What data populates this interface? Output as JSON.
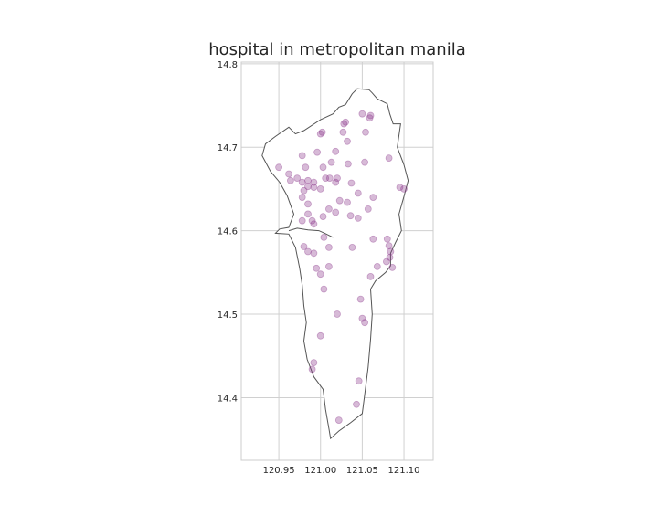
{
  "title": "hospital in metropolitan manila",
  "chart_data": {
    "type": "scatter",
    "title": "hospital in metropolitan manila",
    "xlabel": "",
    "ylabel": "",
    "xlim": [
      120.905,
      121.135
    ],
    "ylim": [
      14.325,
      14.802
    ],
    "grid": true,
    "x_ticks": [
      "120.95",
      "121.00",
      "121.05",
      "121.10"
    ],
    "y_ticks": [
      "14.4",
      "14.5",
      "14.6",
      "14.7",
      "14.8"
    ],
    "point_color": "#8b3a8b",
    "outline_color": "#555555",
    "grid_color": "#d0d0d0",
    "boundary": [
      [
        121.038,
        14.764
      ],
      [
        121.044,
        14.77
      ],
      [
        121.058,
        14.769
      ],
      [
        121.062,
        14.765
      ],
      [
        121.068,
        14.758
      ],
      [
        121.08,
        14.752
      ],
      [
        121.083,
        14.74
      ],
      [
        121.087,
        14.728
      ],
      [
        121.096,
        14.728
      ],
      [
        121.092,
        14.7
      ],
      [
        121.1,
        14.679
      ],
      [
        121.105,
        14.66
      ],
      [
        121.1,
        14.641
      ],
      [
        121.094,
        14.62
      ],
      [
        121.097,
        14.6
      ],
      [
        121.09,
        14.586
      ],
      [
        121.084,
        14.573
      ],
      [
        121.084,
        14.558
      ],
      [
        121.078,
        14.55
      ],
      [
        121.066,
        14.54
      ],
      [
        121.06,
        14.53
      ],
      [
        121.062,
        14.5
      ],
      [
        121.06,
        14.47
      ],
      [
        121.057,
        14.436
      ],
      [
        121.053,
        14.404
      ],
      [
        121.05,
        14.381
      ],
      [
        121.036,
        14.37
      ],
      [
        121.022,
        14.36
      ],
      [
        121.012,
        14.351
      ],
      [
        121.01,
        14.363
      ],
      [
        121.006,
        14.386
      ],
      [
        121.003,
        14.41
      ],
      [
        120.992,
        14.425
      ],
      [
        120.984,
        14.446
      ],
      [
        120.98,
        14.468
      ],
      [
        120.983,
        14.49
      ],
      [
        120.98,
        14.51
      ],
      [
        120.978,
        14.535
      ],
      [
        120.975,
        14.555
      ],
      [
        120.97,
        14.58
      ],
      [
        120.962,
        14.596
      ],
      [
        120.946,
        14.597
      ],
      [
        120.951,
        14.602
      ],
      [
        120.962,
        14.604
      ],
      [
        120.968,
        14.62
      ],
      [
        120.96,
        14.642
      ],
      [
        120.951,
        14.658
      ],
      [
        120.94,
        14.671
      ],
      [
        120.93,
        14.69
      ],
      [
        120.934,
        14.704
      ],
      [
        120.946,
        14.713
      ],
      [
        120.962,
        14.724
      ],
      [
        120.97,
        14.716
      ],
      [
        120.98,
        14.72
      ],
      [
        121.0,
        14.733
      ],
      [
        121.015,
        14.74
      ],
      [
        121.022,
        14.748
      ],
      [
        121.03,
        14.751
      ],
      [
        121.038,
        14.764
      ]
    ],
    "river": [
      [
        120.962,
        14.6
      ],
      [
        120.972,
        14.603
      ],
      [
        120.985,
        14.601
      ],
      [
        120.998,
        14.6
      ],
      [
        121.005,
        14.597
      ],
      [
        121.015,
        14.592
      ]
    ],
    "points": [
      {
        "x": 121.05,
        "y": 14.74
      },
      {
        "x": 121.06,
        "y": 14.738
      },
      {
        "x": 121.059,
        "y": 14.735
      },
      {
        "x": 121.03,
        "y": 14.73
      },
      {
        "x": 121.028,
        "y": 14.728
      },
      {
        "x": 121.027,
        "y": 14.718
      },
      {
        "x": 121.054,
        "y": 14.718
      },
      {
        "x": 121.002,
        "y": 14.718
      },
      {
        "x": 121.0,
        "y": 14.716
      },
      {
        "x": 121.032,
        "y": 14.707
      },
      {
        "x": 121.018,
        "y": 14.695
      },
      {
        "x": 120.996,
        "y": 14.694
      },
      {
        "x": 120.978,
        "y": 14.69
      },
      {
        "x": 120.95,
        "y": 14.676
      },
      {
        "x": 121.013,
        "y": 14.682
      },
      {
        "x": 121.033,
        "y": 14.68
      },
      {
        "x": 121.053,
        "y": 14.682
      },
      {
        "x": 121.082,
        "y": 14.687
      },
      {
        "x": 120.982,
        "y": 14.676
      },
      {
        "x": 121.003,
        "y": 14.676
      },
      {
        "x": 120.962,
        "y": 14.668
      },
      {
        "x": 121.006,
        "y": 14.663
      },
      {
        "x": 121.011,
        "y": 14.663
      },
      {
        "x": 121.02,
        "y": 14.663
      },
      {
        "x": 121.018,
        "y": 14.658
      },
      {
        "x": 120.964,
        "y": 14.66
      },
      {
        "x": 120.972,
        "y": 14.663
      },
      {
        "x": 120.978,
        "y": 14.658
      },
      {
        "x": 120.985,
        "y": 14.66
      },
      {
        "x": 120.992,
        "y": 14.658
      },
      {
        "x": 120.985,
        "y": 14.653
      },
      {
        "x": 120.98,
        "y": 14.648
      },
      {
        "x": 120.992,
        "y": 14.652
      },
      {
        "x": 121.0,
        "y": 14.65
      },
      {
        "x": 121.037,
        "y": 14.657
      },
      {
        "x": 121.045,
        "y": 14.645
      },
      {
        "x": 121.063,
        "y": 14.64
      },
      {
        "x": 121.095,
        "y": 14.652
      },
      {
        "x": 121.1,
        "y": 14.65
      },
      {
        "x": 120.978,
        "y": 14.64
      },
      {
        "x": 120.985,
        "y": 14.632
      },
      {
        "x": 121.023,
        "y": 14.636
      },
      {
        "x": 121.032,
        "y": 14.634
      },
      {
        "x": 121.01,
        "y": 14.626
      },
      {
        "x": 121.057,
        "y": 14.626
      },
      {
        "x": 120.985,
        "y": 14.62
      },
      {
        "x": 121.003,
        "y": 14.617
      },
      {
        "x": 121.018,
        "y": 14.622
      },
      {
        "x": 121.036,
        "y": 14.618
      },
      {
        "x": 121.045,
        "y": 14.615
      },
      {
        "x": 120.99,
        "y": 14.612
      },
      {
        "x": 120.992,
        "y": 14.608
      },
      {
        "x": 120.978,
        "y": 14.612
      },
      {
        "x": 121.004,
        "y": 14.592
      },
      {
        "x": 120.98,
        "y": 14.581
      },
      {
        "x": 120.985,
        "y": 14.575
      },
      {
        "x": 120.992,
        "y": 14.573
      },
      {
        "x": 121.01,
        "y": 14.58
      },
      {
        "x": 121.038,
        "y": 14.58
      },
      {
        "x": 121.063,
        "y": 14.59
      },
      {
        "x": 121.08,
        "y": 14.59
      },
      {
        "x": 121.082,
        "y": 14.582
      },
      {
        "x": 121.084,
        "y": 14.575
      },
      {
        "x": 121.083,
        "y": 14.568
      },
      {
        "x": 121.079,
        "y": 14.563
      },
      {
        "x": 121.086,
        "y": 14.556
      },
      {
        "x": 121.068,
        "y": 14.557
      },
      {
        "x": 121.06,
        "y": 14.545
      },
      {
        "x": 120.995,
        "y": 14.555
      },
      {
        "x": 121.01,
        "y": 14.557
      },
      {
        "x": 121.0,
        "y": 14.548
      },
      {
        "x": 121.004,
        "y": 14.53
      },
      {
        "x": 121.048,
        "y": 14.518
      },
      {
        "x": 121.02,
        "y": 14.5
      },
      {
        "x": 121.05,
        "y": 14.495
      },
      {
        "x": 121.053,
        "y": 14.49
      },
      {
        "x": 121.0,
        "y": 14.474
      },
      {
        "x": 120.992,
        "y": 14.442
      },
      {
        "x": 120.99,
        "y": 14.434
      },
      {
        "x": 121.046,
        "y": 14.42
      },
      {
        "x": 121.043,
        "y": 14.392
      },
      {
        "x": 121.022,
        "y": 14.373
      }
    ]
  }
}
